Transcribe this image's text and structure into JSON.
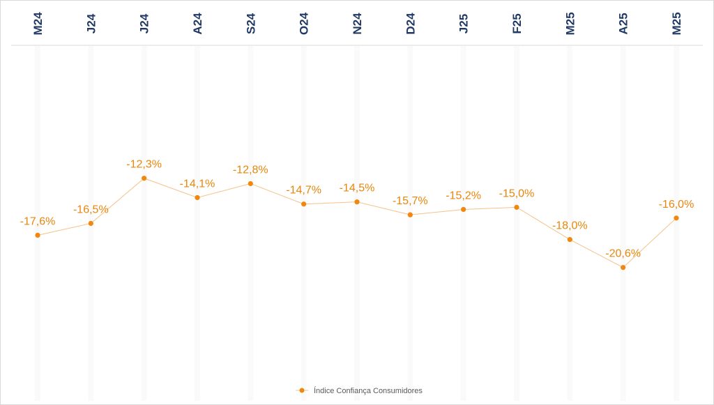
{
  "chart_data": {
    "type": "line",
    "categories": [
      "M24",
      "J24",
      "J24",
      "A24",
      "S24",
      "O24",
      "N24",
      "D24",
      "J25",
      "F25",
      "M25",
      "A25",
      "M25"
    ],
    "series": [
      {
        "name": "Índice Confiança Consumidores",
        "values": [
          -17.6,
          -16.5,
          -12.3,
          -14.1,
          -12.8,
          -14.7,
          -14.5,
          -15.7,
          -15.2,
          -15.0,
          -18.0,
          -20.6,
          -16.0
        ],
        "labels": [
          "-17,6%",
          "-16,5%",
          "-12,3%",
          "-14,1%",
          "-12,8%",
          "-14,7%",
          "-14,5%",
          "-15,7%",
          "-15,2%",
          "-15,0%",
          "-18,0%",
          "-20,6%",
          "-16,0%"
        ],
        "color": "#f0880f"
      }
    ],
    "title": "",
    "xlabel": "",
    "ylabel": "",
    "ylim": [
      -33,
      0
    ],
    "grid": false,
    "legend_position": "bottom",
    "colors": {
      "category_text": "#1f3864",
      "line": "#f5c28a",
      "marker": "#f0880f",
      "data_label": "#e8860c"
    }
  }
}
